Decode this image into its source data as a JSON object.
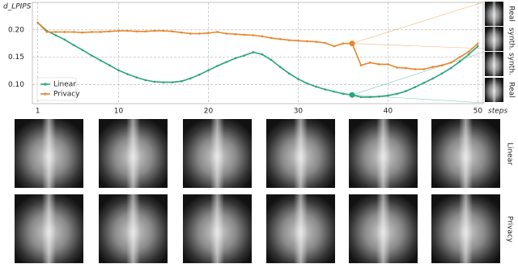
{
  "chart_data": {
    "type": "line",
    "y_label": "d_LPIPS",
    "x_label": "steps",
    "x": [
      1,
      2,
      3,
      4,
      5,
      6,
      7,
      8,
      9,
      10,
      11,
      12,
      13,
      14,
      15,
      16,
      17,
      18,
      19,
      20,
      21,
      22,
      23,
      24,
      25,
      26,
      27,
      28,
      29,
      30,
      31,
      32,
      33,
      34,
      35,
      36,
      37,
      38,
      39,
      40,
      41,
      42,
      43,
      44,
      45,
      46,
      47,
      48,
      49,
      50
    ],
    "series": [
      {
        "name": "Linear",
        "color": "#2aa37f",
        "values": [
          0.213,
          0.198,
          0.19,
          0.182,
          0.172,
          0.163,
          0.153,
          0.144,
          0.135,
          0.126,
          0.119,
          0.113,
          0.108,
          0.105,
          0.104,
          0.104,
          0.106,
          0.111,
          0.118,
          0.126,
          0.134,
          0.141,
          0.148,
          0.153,
          0.159,
          0.155,
          0.145,
          0.132,
          0.12,
          0.11,
          0.102,
          0.096,
          0.091,
          0.087,
          0.083,
          0.081,
          0.077,
          0.077,
          0.078,
          0.08,
          0.083,
          0.088,
          0.095,
          0.103,
          0.111,
          0.12,
          0.13,
          0.142,
          0.155,
          0.17
        ]
      },
      {
        "name": "Privacy",
        "color": "#e8862a",
        "values": [
          0.213,
          0.196,
          0.196,
          0.196,
          0.196,
          0.195,
          0.196,
          0.196,
          0.197,
          0.198,
          0.198,
          0.197,
          0.197,
          0.198,
          0.198,
          0.197,
          0.195,
          0.193,
          0.193,
          0.194,
          0.196,
          0.193,
          0.192,
          0.191,
          0.19,
          0.188,
          0.185,
          0.183,
          0.181,
          0.18,
          0.179,
          0.178,
          0.176,
          0.17,
          0.175,
          0.175,
          0.135,
          0.14,
          0.137,
          0.137,
          0.131,
          0.13,
          0.128,
          0.128,
          0.132,
          0.135,
          0.14,
          0.15,
          0.16,
          0.175
        ]
      }
    ],
    "highlight_x": 36,
    "xlim": [
      0.4,
      50.6
    ],
    "ylim": [
      0.065,
      0.25
    ],
    "xticks": [
      1,
      10,
      20,
      30,
      40,
      50
    ],
    "yticks": [
      {
        "value": 0.1,
        "label": "0.10"
      },
      {
        "value": 0.15,
        "label": "0.15"
      },
      {
        "value": 0.2,
        "label": "0.20"
      }
    ],
    "grid": true,
    "legend": "lower-left"
  },
  "figure": {
    "thumbnail_labels": [
      "Real",
      "synth.",
      "synth.",
      "Real"
    ],
    "row_labels": [
      "Linear",
      "Privacy"
    ]
  }
}
